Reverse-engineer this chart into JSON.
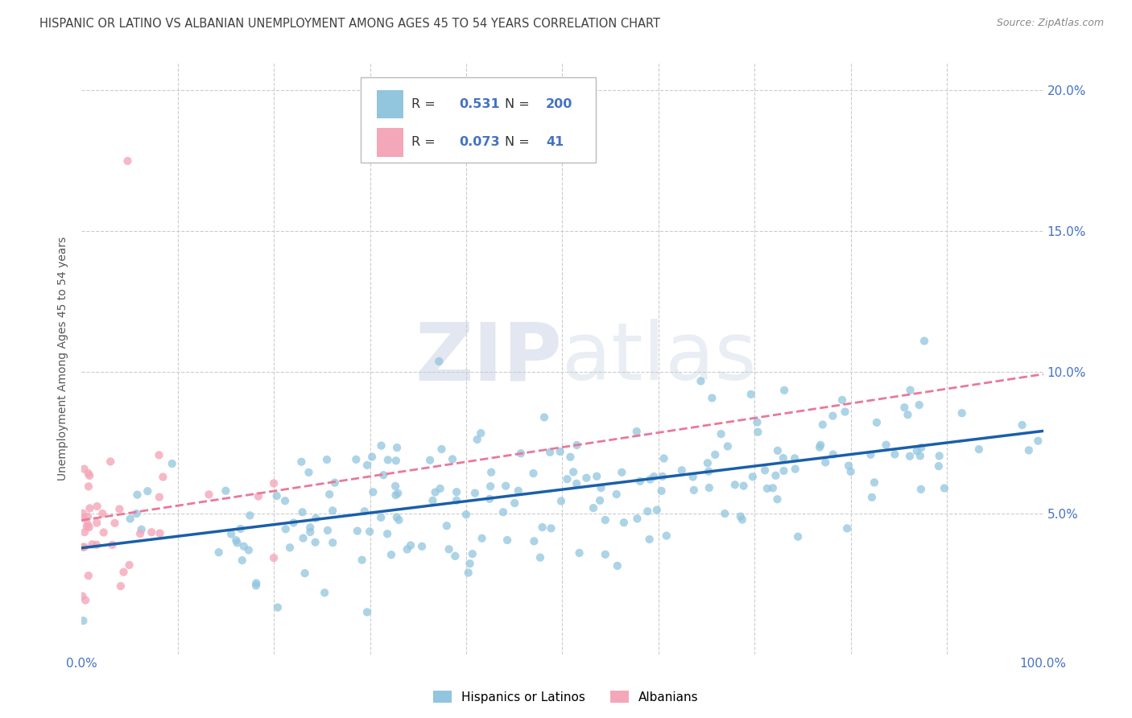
{
  "title": "HISPANIC OR LATINO VS ALBANIAN UNEMPLOYMENT AMONG AGES 45 TO 54 YEARS CORRELATION CHART",
  "source": "Source: ZipAtlas.com",
  "ylabel": "Unemployment Among Ages 45 to 54 years",
  "xlim": [
    0,
    1.0
  ],
  "ylim": [
    0,
    0.21
  ],
  "xticks": [
    0.0,
    0.1,
    0.2,
    0.3,
    0.4,
    0.5,
    0.6,
    0.7,
    0.8,
    0.9,
    1.0
  ],
  "xticklabels": [
    "0.0%",
    "",
    "",
    "",
    "",
    "",
    "",
    "",
    "",
    "",
    "100.0%"
  ],
  "yticks": [
    0.0,
    0.05,
    0.1,
    0.15,
    0.2
  ],
  "yticklabels": [
    "",
    "5.0%",
    "10.0%",
    "15.0%",
    "20.0%"
  ],
  "hispanic_R": 0.531,
  "hispanic_N": 200,
  "albanian_R": 0.073,
  "albanian_N": 41,
  "hispanic_color": "#92c5de",
  "albanian_color": "#f4a7b9",
  "hispanic_line_color": "#1a5fa8",
  "albanian_line_color": "#e8799a",
  "legend_label_1": "Hispanics or Latinos",
  "legend_label_2": "Albanians",
  "watermark_zip": "ZIP",
  "watermark_atlas": "atlas",
  "background_color": "#ffffff",
  "grid_color": "#cccccc",
  "title_color": "#404040",
  "axis_label_color": "#555555",
  "tick_label_color": "#4472c4",
  "stat_color": "#4472c4"
}
